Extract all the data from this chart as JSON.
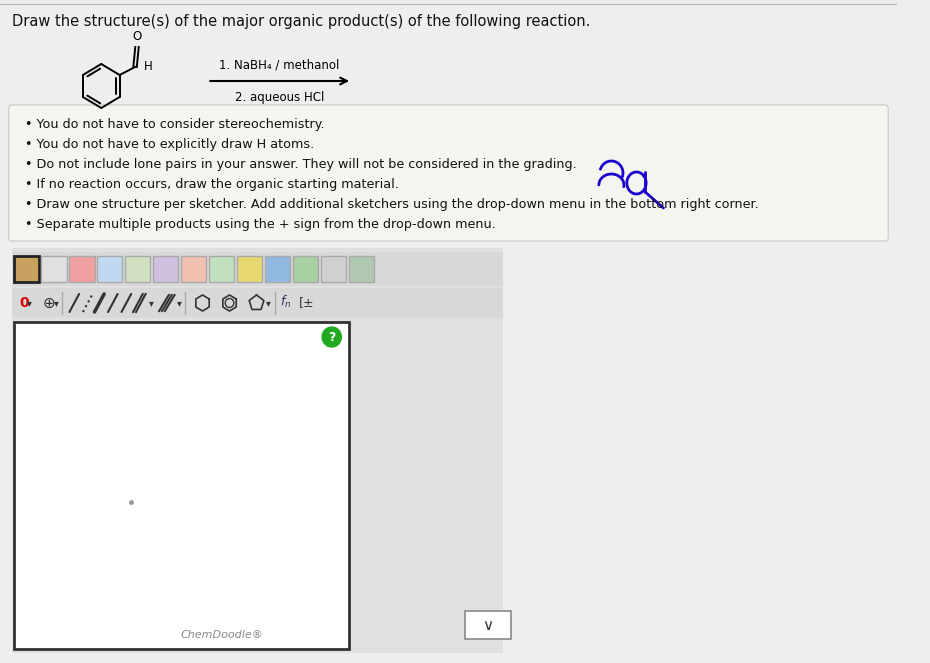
{
  "title": "Draw the structure(s) of the major organic product(s) of the following reaction.",
  "title_fontsize": 11,
  "page_bg": "#eeeeee",
  "white": "#ffffff",
  "bullet_points": [
    "You do not have to consider stereochemistry.",
    "You do not have to explicitly draw H atoms.",
    "Do not include lone pairs in your answer. They will not be considered in the grading.",
    "If no reaction occurs, draw the organic starting material.",
    "Draw one structure per sketcher. Add additional sketchers using the drop-down menu in the bottom right corner.",
    "Separate multiple products using the + sign from the drop-down menu."
  ],
  "reaction_text_line1": "1. NaBH₄ / methanol",
  "reaction_text_line2": "2. aqueous HCl",
  "chemdoodle_label": "ChemDoodle®",
  "text_color": "#111111",
  "blue_color": "#1a00cc",
  "box_border_color": "#cccccc",
  "box_bg_color": "#f5f5f0",
  "sketcher_bg": "#ffffff",
  "green_circle_color": "#22aa22",
  "red_zero_color": "#dd0000",
  "toolbar_bg": "#e8e8e8",
  "icon_border": "#aaaaaa"
}
